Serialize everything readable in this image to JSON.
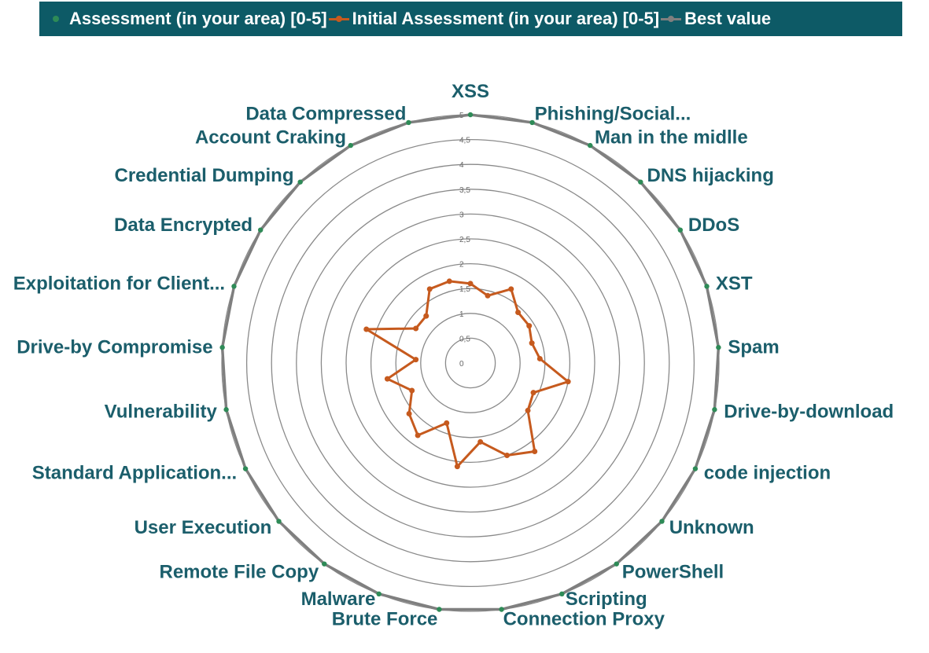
{
  "legend": {
    "items": [
      {
        "label": "Assessment (in your area) [0-5]",
        "color": "#2e8b57",
        "style": "marker"
      },
      {
        "label": "Initial Assessment (in your area) [0-5]",
        "color": "#c65a1e",
        "style": "line-marker"
      },
      {
        "label": "Best value",
        "color": "#7f7f7f",
        "style": "line-marker"
      }
    ]
  },
  "chart_data": {
    "type": "radar",
    "categories": [
      "XSS",
      "Phishing/Social...",
      "Man in the midlle",
      "DNS hijacking",
      "DDoS",
      "XST",
      "Spam",
      "Drive-by-download",
      "code injection",
      "Unknown",
      "PowerShell",
      "Scripting",
      "Connection Proxy",
      "Brute Force",
      "Malware",
      "Remote File Copy",
      "User Execution",
      "Standard Application...",
      "Vulnerability",
      "Drive-by Compromise",
      "Exploitation for Client...",
      "Data Encrypted",
      "Credential Dumping",
      "Account Craking",
      "Data Compressed"
    ],
    "series": [
      {
        "name": "Initial Assessment (in your area) [0-5]",
        "color": "#c65a1e",
        "values": [
          1.6,
          1.4,
          1.7,
          1.4,
          1.4,
          1.3,
          1.4,
          2.0,
          1.4,
          1.5,
          2.2,
          2.0,
          1.6,
          2.1,
          1.3,
          1.8,
          1.6,
          1.3,
          1.7,
          1.1,
          2.2,
          1.3,
          1.3,
          1.7,
          1.7
        ]
      },
      {
        "name": "Best value",
        "color": "#7f7f7f",
        "values": [
          5,
          5,
          5,
          5,
          5,
          5,
          5,
          5,
          5,
          5,
          5,
          5,
          5,
          5,
          5,
          5,
          5,
          5,
          5,
          5,
          5,
          5,
          5,
          5,
          5
        ]
      }
    ],
    "rlim": [
      0,
      5
    ],
    "ticks": [
      "0",
      "0,5",
      "1",
      "1,5",
      "2",
      "2,5",
      "3",
      "3,5",
      "4",
      "4,5",
      "5"
    ],
    "legend_position": "top",
    "grid": true
  }
}
